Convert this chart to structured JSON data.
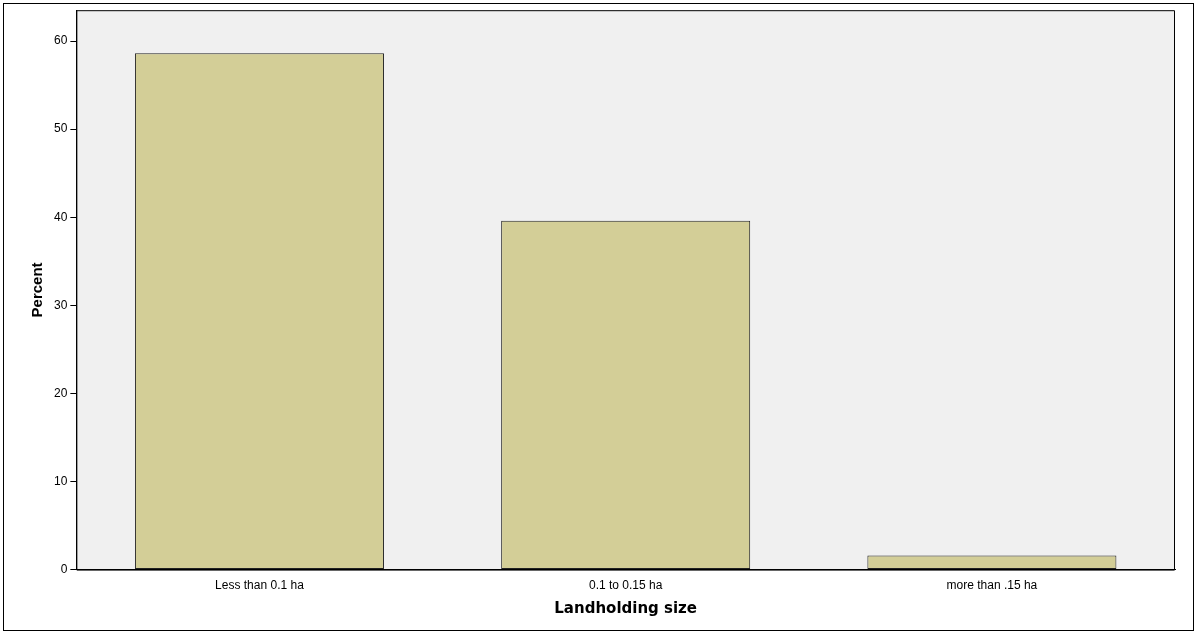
{
  "chart_data": {
    "type": "bar",
    "xlabel": "Landholding size",
    "ylabel": "Percent",
    "categories": [
      "Less than 0.1 ha",
      "0.1 to 0.15 ha",
      "more than .15 ha"
    ],
    "values": [
      58.6,
      39.6,
      1.6
    ],
    "color": "#d3ce97",
    "ylim": [
      0,
      63.5
    ],
    "yticks": [
      0,
      10,
      20,
      30,
      40,
      50,
      60
    ],
    "grid": false,
    "legend": false
  }
}
